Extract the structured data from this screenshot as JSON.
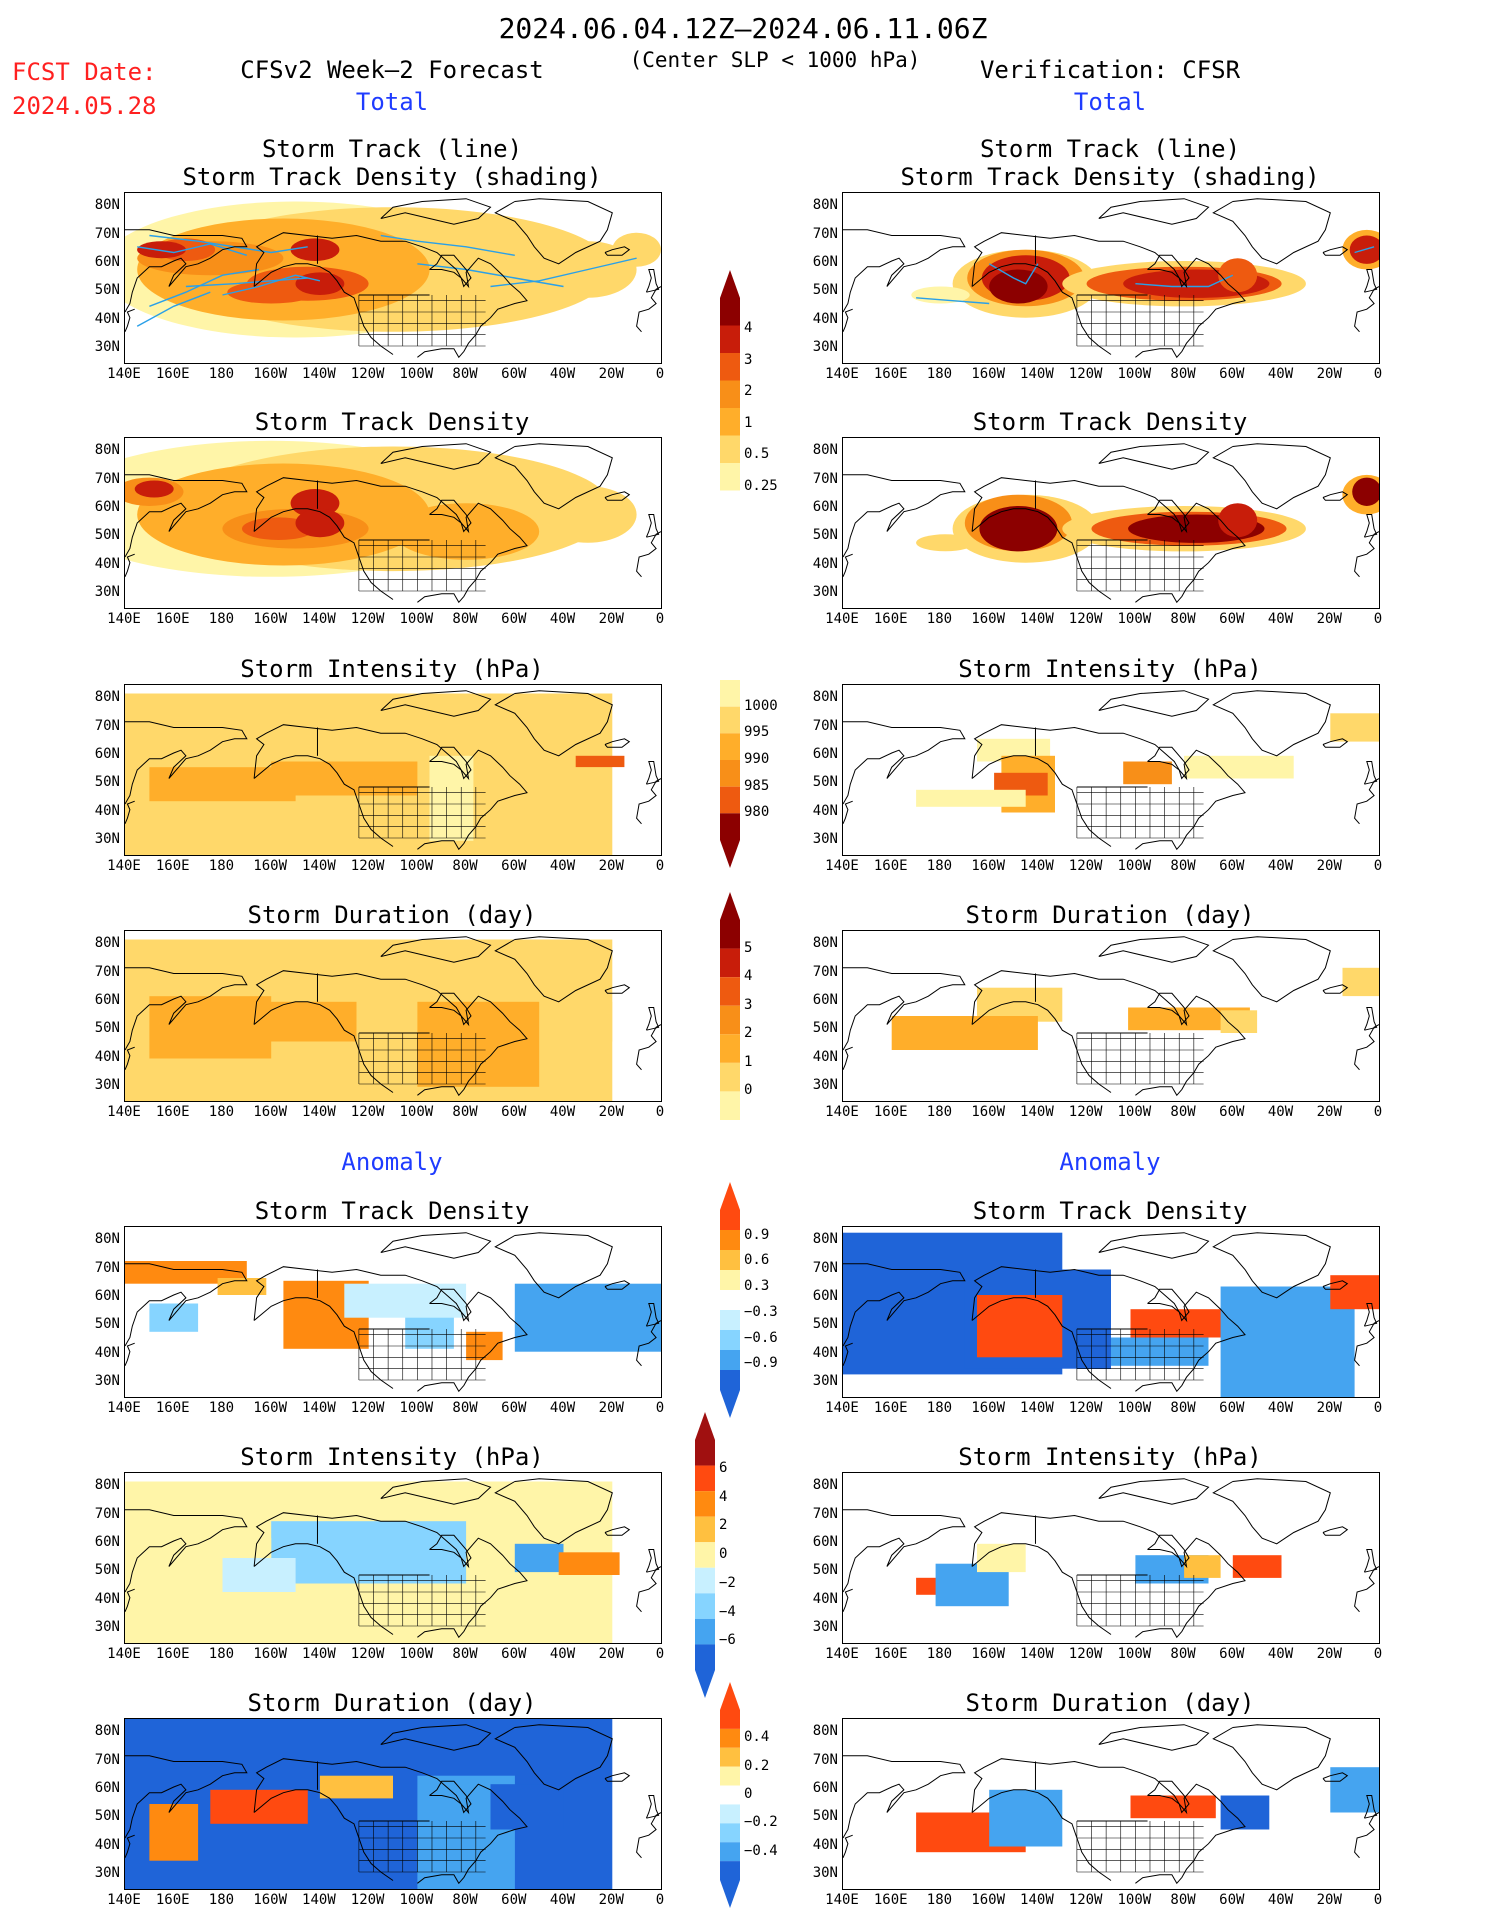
{
  "header": {
    "period": "2024.06.04.12Z–2024.06.11.06Z",
    "condition": "(Center SLP < 1000 hPa)",
    "fcst_label": "FCST Date:",
    "fcst_date": "2024.05.28",
    "forecast_title": "CFSv2 Week–2 Forecast",
    "verification_title": "Verification: CFSR"
  },
  "sections": {
    "total_left": "Total",
    "total_right": "Total",
    "anomaly_left": "Anomaly",
    "anomaly_right": "Anomaly"
  },
  "panel_titles": {
    "track_line": "Storm Track (line)",
    "track_shading": "Storm Track Density (shading)",
    "density": "Storm Track Density",
    "intensity": "Storm Intensity (hPa)",
    "duration": "Storm Duration (day)"
  },
  "axes": {
    "lat_ticks": [
      "80N",
      "70N",
      "60N",
      "50N",
      "40N",
      "30N"
    ],
    "lon_ticks": [
      "140E",
      "160E",
      "180",
      "160W",
      "140W",
      "120W",
      "100W",
      "80W",
      "60W",
      "40W",
      "20W",
      "0"
    ]
  },
  "colorbars": {
    "density_total": [
      "4",
      "3",
      "2",
      "1",
      "0.5",
      "0.25"
    ],
    "intensity_total": [
      "1000",
      "995",
      "990",
      "985",
      "980"
    ],
    "duration_total": [
      "5",
      "4",
      "3",
      "2",
      "1",
      "0"
    ],
    "density_anom": [
      "0.9",
      "0.6",
      "0.3",
      "−0.3",
      "−0.6",
      "−0.9"
    ],
    "intensity_anom": [
      "6",
      "4",
      "2",
      "0",
      "−2",
      "−4",
      "−6"
    ],
    "duration_anom": [
      "0.4",
      "0.2",
      "0",
      "−0.2",
      "−0.4"
    ]
  },
  "colors": {
    "total_scale": [
      "#fff5a8",
      "#ffd86a",
      "#ffae2a",
      "#f88f18",
      "#ee5a10",
      "#c81d0a",
      "#8c0000"
    ],
    "anom_pos": [
      "#fff5a8",
      "#ffc040",
      "#ff8a10",
      "#ff4a10"
    ],
    "anom_neg": [
      "#c8f0ff",
      "#86d4ff",
      "#45a4f0",
      "#1f64d8"
    ],
    "track_line": "#2aa0e8",
    "red_text": "#ff2020",
    "blue_text": "#1f3cff"
  }
}
